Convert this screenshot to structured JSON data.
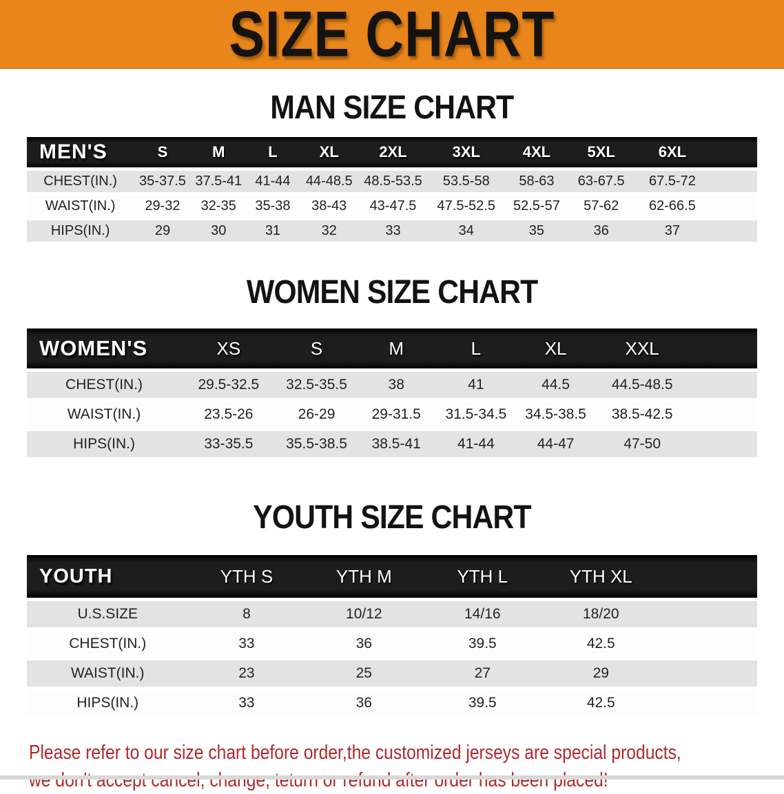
{
  "banner": {
    "title": "SIZE CHART"
  },
  "colors": {
    "banner_bg": "#E8851B",
    "header_bar": "#1D1D1D",
    "stripe_gray": "#E3E3E3",
    "disclaimer_red": "#B2272B"
  },
  "sections": [
    {
      "heading": "MAN SIZE CHART",
      "table": {
        "header_label": "MEN'S",
        "sizes": [
          "S",
          "M",
          "L",
          "XL",
          "2XL",
          "3XL",
          "4XL",
          "5XL",
          "6XL"
        ],
        "rows": [
          {
            "label": "CHEST(IN.)",
            "values": [
              "35-37.5",
              "37.5-41",
              "41-44",
              "44-48.5",
              "48.5-53.5",
              "53.5-58",
              "58-63",
              "63-67.5",
              "67.5-72"
            ]
          },
          {
            "label": "WAIST(IN.)",
            "values": [
              "29-32",
              "32-35",
              "35-38",
              "38-43",
              "43-47.5",
              "47.5-52.5",
              "52.5-57",
              "57-62",
              "62-66.5"
            ]
          },
          {
            "label": "HIPS(IN.)",
            "values": [
              "29",
              "30",
              "31",
              "32",
              "33",
              "34",
              "35",
              "36",
              "37"
            ]
          }
        ]
      }
    },
    {
      "heading": "WOMEN SIZE CHART",
      "table": {
        "header_label": "WOMEN'S",
        "sizes": [
          "XS",
          "S",
          "M",
          "L",
          "XL",
          "XXL"
        ],
        "rows": [
          {
            "label": "CHEST(IN.)",
            "values": [
              "29.5-32.5",
              "32.5-35.5",
              "38",
              "41",
              "44.5",
              "44.5-48.5"
            ]
          },
          {
            "label": "WAIST(IN.)",
            "values": [
              "23.5-26",
              "26-29",
              "29-31.5",
              "31.5-34.5",
              "34.5-38.5",
              "38.5-42.5"
            ]
          },
          {
            "label": "HIPS(IN.)",
            "values": [
              "33-35.5",
              "35.5-38.5",
              "38.5-41",
              "41-44",
              "44-47",
              "47-50"
            ]
          }
        ]
      }
    },
    {
      "heading": "YOUTH SIZE CHART",
      "table": {
        "header_label": "YOUTH",
        "sizes": [
          "YTH S",
          "YTH M",
          "YTH L",
          "YTH XL"
        ],
        "rows": [
          {
            "label": "U.S.SIZE",
            "values": [
              "8",
              "10/12",
              "14/16",
              "18/20"
            ]
          },
          {
            "label": "CHEST(IN.)",
            "values": [
              "33",
              "36",
              "39.5",
              "42.5"
            ]
          },
          {
            "label": "WAIST(IN.)",
            "values": [
              "23",
              "25",
              "27",
              "29"
            ]
          },
          {
            "label": "HIPS(IN.)",
            "values": [
              "33",
              "36",
              "39.5",
              "42.5"
            ]
          }
        ]
      }
    }
  ],
  "disclaimer": {
    "line1": "Please refer to our size chart before order,the customized jerseys are special products,",
    "line2": "we don't accept cancel, change, teturn or refund after order has been placed!"
  }
}
